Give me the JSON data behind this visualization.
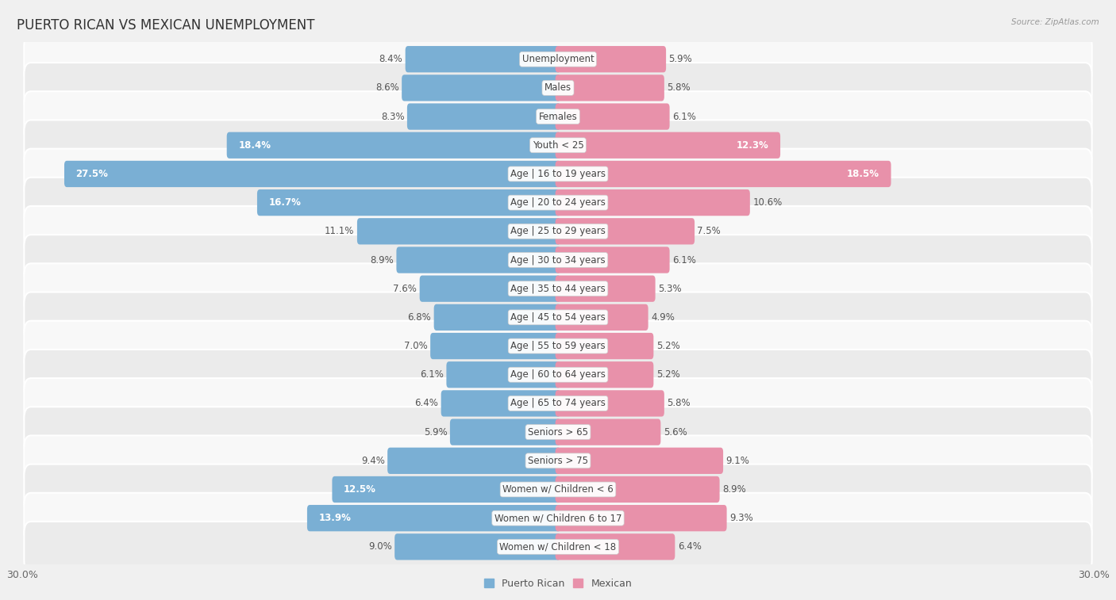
{
  "title": "PUERTO RICAN VS MEXICAN UNEMPLOYMENT",
  "source": "Source: ZipAtlas.com",
  "categories": [
    "Unemployment",
    "Males",
    "Females",
    "Youth < 25",
    "Age | 16 to 19 years",
    "Age | 20 to 24 years",
    "Age | 25 to 29 years",
    "Age | 30 to 34 years",
    "Age | 35 to 44 years",
    "Age | 45 to 54 years",
    "Age | 55 to 59 years",
    "Age | 60 to 64 years",
    "Age | 65 to 74 years",
    "Seniors > 65",
    "Seniors > 75",
    "Women w/ Children < 6",
    "Women w/ Children 6 to 17",
    "Women w/ Children < 18"
  ],
  "puerto_rican": [
    8.4,
    8.6,
    8.3,
    18.4,
    27.5,
    16.7,
    11.1,
    8.9,
    7.6,
    6.8,
    7.0,
    6.1,
    6.4,
    5.9,
    9.4,
    12.5,
    13.9,
    9.0
  ],
  "mexican": [
    5.9,
    5.8,
    6.1,
    12.3,
    18.5,
    10.6,
    7.5,
    6.1,
    5.3,
    4.9,
    5.2,
    5.2,
    5.8,
    5.6,
    9.1,
    8.9,
    9.3,
    6.4
  ],
  "puerto_rican_color": "#7aafd4",
  "mexican_color": "#e891aa",
  "bar_height": 0.62,
  "max_val": 30.0,
  "background_color": "#f0f0f0",
  "row_light": "#f8f8f8",
  "row_dark": "#ebebeb",
  "title_fontsize": 12,
  "label_fontsize": 8.5,
  "value_fontsize": 8.5,
  "axis_label_fontsize": 9,
  "legend_fontsize": 9,
  "white_text_threshold": 12.0
}
